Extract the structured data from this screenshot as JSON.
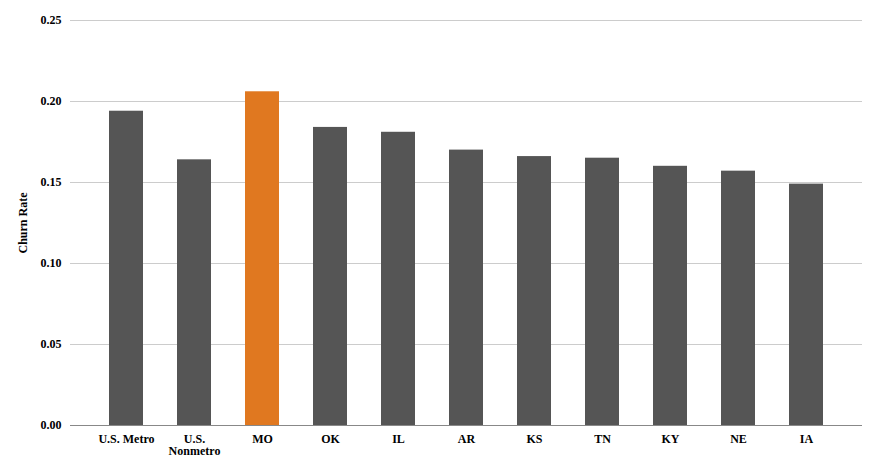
{
  "chart_data": {
    "type": "bar",
    "categories": [
      "U.S. Metro",
      "U.S.\nNonmetro",
      "MO",
      "OK",
      "IL",
      "AR",
      "KS",
      "TN",
      "KY",
      "NE",
      "IA"
    ],
    "values": [
      0.194,
      0.164,
      0.206,
      0.184,
      0.181,
      0.17,
      0.166,
      0.165,
      0.16,
      0.157,
      0.149
    ],
    "colors": [
      "#555555",
      "#555555",
      "#E07820",
      "#555555",
      "#555555",
      "#555555",
      "#555555",
      "#555555",
      "#555555",
      "#555555",
      "#555555"
    ],
    "ylabel": "Churn Rate",
    "ylim": [
      0,
      0.25
    ],
    "yticks": [
      {
        "value": 0,
        "label": "0.00"
      },
      0.05,
      {
        "value": 0.1,
        "label": "0.10"
      },
      0.15,
      {
        "value": 0.2,
        "label": "0.20"
      },
      0.25
    ],
    "grid": true
  }
}
